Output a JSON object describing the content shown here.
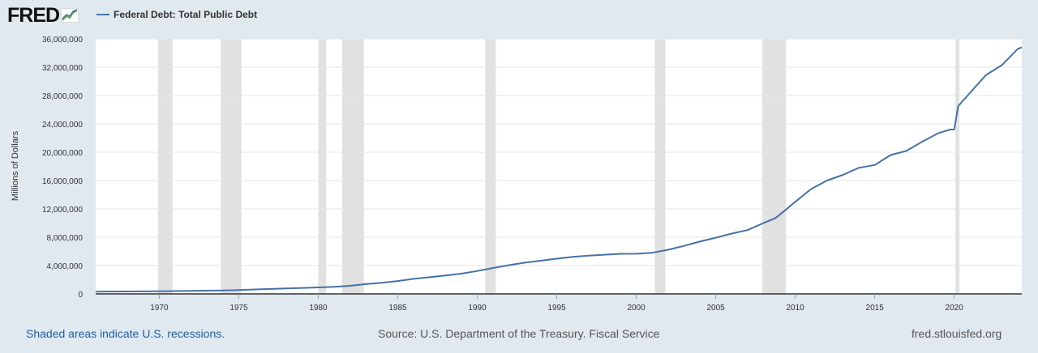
{
  "header": {
    "logo_text": "FRED",
    "logo_icon": "fred-chart-icon",
    "series_label": "Federal Debt: Total Public Debt"
  },
  "colors": {
    "line": "#4572a7",
    "background": "#e1e9f0",
    "plot_background": "#ffffff",
    "recession": "#e1e1e1",
    "grid": "#e6e6e6",
    "link": "#1f5fa0"
  },
  "footer": {
    "recession_note": "Shaded areas indicate U.S. recessions.",
    "source": "Source: U.S. Department of the Treasury. Fiscal Service",
    "site": "fred.stlouisfed.org"
  },
  "chart_data": {
    "type": "line",
    "title": "",
    "xlabel": "",
    "ylabel": "Millions of Dollars",
    "xlim": [
      1966,
      2024.25
    ],
    "ylim": [
      0,
      36000000
    ],
    "yticks": [
      0,
      4000000,
      8000000,
      12000000,
      16000000,
      20000000,
      24000000,
      28000000,
      32000000,
      36000000
    ],
    "ytick_labels": [
      "0",
      "4,000,000",
      "8,000,000",
      "12,000,000",
      "16,000,000",
      "20,000,000",
      "24,000,000",
      "28,000,000",
      "32,000,000",
      "36,000,000"
    ],
    "xticks": [
      1970,
      1975,
      1980,
      1985,
      1990,
      1995,
      2000,
      2005,
      2010,
      2015,
      2020
    ],
    "xtick_labels": [
      "1970",
      "1975",
      "1980",
      "1985",
      "1990",
      "1995",
      "2000",
      "2005",
      "2010",
      "2015",
      "2020"
    ],
    "grid": true,
    "recessions": [
      [
        1969.92,
        1970.83
      ],
      [
        1973.87,
        1975.17
      ],
      [
        1980.0,
        1980.5
      ],
      [
        1981.5,
        1982.87
      ],
      [
        1990.5,
        1991.17
      ],
      [
        2001.17,
        2001.83
      ],
      [
        2007.92,
        2009.42
      ],
      [
        2020.08,
        2020.33
      ]
    ],
    "series": [
      {
        "name": "Federal Debt: Total Public Debt",
        "x": [
          1966,
          1968,
          1970,
          1972,
          1974,
          1975,
          1976,
          1978,
          1980,
          1981,
          1982,
          1983,
          1984,
          1985,
          1986,
          1987,
          1988,
          1989,
          1990,
          1991,
          1992,
          1993,
          1994,
          1995,
          1996,
          1997,
          1998,
          1999,
          2000,
          2001,
          2002,
          2003,
          2004,
          2005,
          2006,
          2007,
          2008,
          2008.75,
          2009,
          2010,
          2011,
          2012,
          2013,
          2014,
          2015,
          2016,
          2017,
          2018,
          2019,
          2019.75,
          2020.0,
          2020.25,
          2021,
          2022,
          2023,
          2024,
          2024.25
        ],
        "values": [
          320000,
          345000,
          380000,
          430000,
          480000,
          540000,
          630000,
          780000,
          910000,
          1000000,
          1140000,
          1380000,
          1570000,
          1820000,
          2120000,
          2350000,
          2600000,
          2860000,
          3230000,
          3660000,
          4060000,
          4410000,
          4690000,
          4970000,
          5220000,
          5410000,
          5530000,
          5660000,
          5670000,
          5810000,
          6230000,
          6780000,
          7380000,
          7930000,
          8510000,
          9010000,
          9990000,
          10700000,
          11120000,
          13000000,
          14800000,
          16000000,
          16800000,
          17800000,
          18200000,
          19600000,
          20200000,
          21500000,
          22700000,
          23200000,
          23200000,
          26500000,
          28400000,
          30900000,
          32300000,
          34600000,
          34800000
        ]
      }
    ]
  }
}
